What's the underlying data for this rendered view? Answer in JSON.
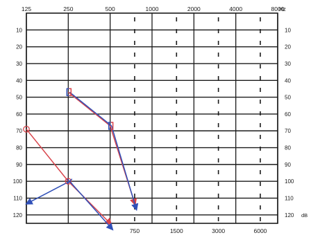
{
  "chart_data": {
    "type": "line",
    "title": "",
    "xlabel": "",
    "ylabel": "",
    "x_unit": "Hz",
    "y_unit": "dB",
    "top_freqs": [
      "125",
      "250",
      "500",
      "1000",
      "2000",
      "4000",
      "8000"
    ],
    "bottom_freqs": [
      "750",
      "1500",
      "3000",
      "6000"
    ],
    "db_levels": [
      10,
      20,
      30,
      40,
      50,
      60,
      70,
      80,
      90,
      100,
      110,
      120
    ],
    "left_db_labels": [
      "10",
      "20",
      "30",
      "40",
      "50",
      "60",
      "70",
      "80",
      "90",
      "100",
      "110",
      "120"
    ],
    "right_db_labels": [
      "10",
      "20",
      "30",
      "40",
      "50",
      "60",
      "70",
      "80",
      "90",
      "100",
      "110",
      "120"
    ],
    "ylim": [
      0,
      125
    ],
    "series": [
      {
        "color": "#d8434a",
        "points": [
          {
            "x": 250,
            "y": 47,
            "marker": "["
          },
          {
            "x": 500,
            "y": 67,
            "marker": "["
          },
          {
            "x": 750,
            "y": 113,
            "marker": "arrow"
          }
        ]
      },
      {
        "color": "#3050b8",
        "points": [
          {
            "x": 250,
            "y": 47,
            "marker": "["
          },
          {
            "x": 500,
            "y": 67,
            "marker": "["
          },
          {
            "x": 750,
            "y": 116,
            "marker": "arrow"
          }
        ]
      },
      {
        "color": "#d8434a",
        "points": [
          {
            "x": 125,
            "y": 69,
            "marker": "o"
          },
          {
            "x": 250,
            "y": 100,
            "marker": "o"
          },
          {
            "x": 500,
            "y": 125,
            "marker": "arrow"
          }
        ]
      },
      {
        "color": "#3050b8",
        "points": [
          {
            "x": 125,
            "y": 113,
            "marker": "arrow"
          },
          {
            "x": 250,
            "y": 100,
            "marker": "x"
          },
          {
            "x": 500,
            "y": 128,
            "marker": "arrow"
          }
        ]
      }
    ]
  }
}
